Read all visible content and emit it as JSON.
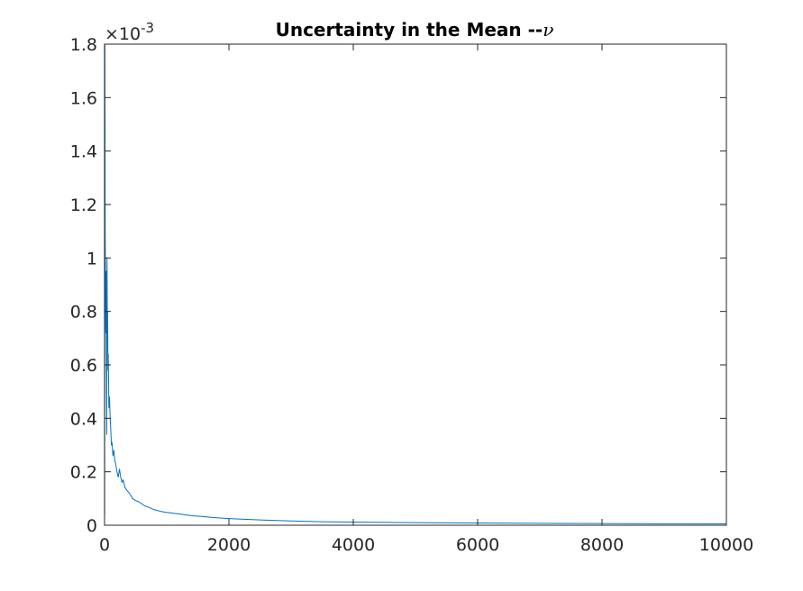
{
  "chart_data": {
    "type": "line",
    "title": "Uncertainty in the Mean --",
    "title_symbol": "ν",
    "xlabel": "",
    "ylabel": "",
    "xlim": [
      0,
      10000
    ],
    "ylim": [
      0,
      0.0018
    ],
    "y_exponent_label": "×10",
    "y_exponent_power": "-3",
    "y_scale_factor": 0.001,
    "x_ticks": [
      0,
      2000,
      4000,
      6000,
      8000,
      10000
    ],
    "x_tick_labels": [
      "0",
      "2000",
      "4000",
      "6000",
      "8000",
      "10000"
    ],
    "y_ticks": [
      0,
      0.0002,
      0.0004,
      0.0006,
      0.0008,
      0.001,
      0.0012,
      0.0014,
      0.0016,
      0.0018
    ],
    "y_tick_labels": [
      "0",
      "0.2",
      "0.4",
      "0.6",
      "0.8",
      "1",
      "1.2",
      "1.4",
      "1.6",
      "1.8"
    ],
    "grid": false,
    "box": true,
    "series": [
      {
        "color": "#0072BD",
        "x": [
          2,
          5,
          10,
          15,
          20,
          25,
          30,
          35,
          40,
          45,
          50,
          55,
          60,
          70,
          80,
          90,
          100,
          110,
          120,
          135,
          150,
          165,
          180,
          200,
          220,
          240,
          260,
          280,
          300,
          330,
          360,
          400,
          450,
          500,
          550,
          600,
          650,
          700,
          800,
          900,
          1000,
          1200,
          1400,
          1600,
          1800,
          2000,
          2500,
          3000,
          3500,
          4000,
          5000,
          6000,
          7000,
          8000,
          9000,
          10000
        ],
        "y": [
          4e-05,
          0.0018,
          0.0011,
          0.0009,
          0.00072,
          0.00095,
          0.0006,
          0.00034,
          0.001,
          0.00075,
          0.0008,
          0.00058,
          0.00064,
          0.00044,
          0.00048,
          0.0004,
          0.00036,
          0.0003,
          0.00031,
          0.00026,
          0.00028,
          0.00024,
          0.00023,
          0.0002,
          0.00018,
          0.00021,
          0.00018,
          0.00016,
          0.00017,
          0.00014,
          0.00013,
          0.00012,
          0.0001,
          9.2e-05,
          8.8e-05,
          8e-05,
          7.2e-05,
          6.8e-05,
          5.8e-05,
          5.2e-05,
          4.8e-05,
          4.2e-05,
          3.6e-05,
          3.2e-05,
          2.8e-05,
          2.5e-05,
          2e-05,
          1.6e-05,
          1.3e-05,
          1.2e-05,
          9.8e-06,
          8.5e-06,
          7.2e-06,
          6.3e-06,
          5.6e-06,
          5e-06
        ]
      }
    ]
  }
}
